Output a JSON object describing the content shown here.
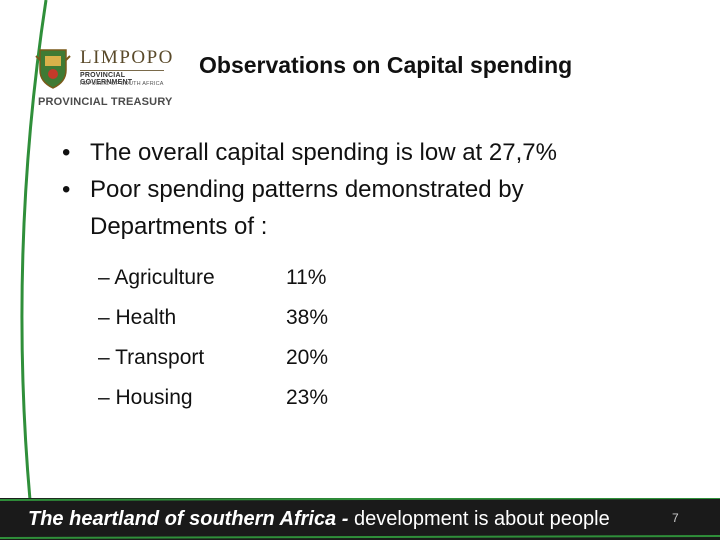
{
  "logo": {
    "name": "LIMPOPO",
    "sub1": "PROVINCIAL GOVERNMENT",
    "sub2": "REPUBLIC OF SOUTH AFRICA",
    "treasury": "PROVINCIAL TREASURY"
  },
  "title": "Observations on Capital spending",
  "bullets": [
    {
      "symbol": "•",
      "text": "The overall capital spending is low at 27,7%"
    },
    {
      "symbol": "•",
      "text_line1": "Poor spending patterns demonstrated by",
      "text_line2": "Departments of :"
    }
  ],
  "departments": [
    {
      "label": "– Agriculture",
      "value": "11%"
    },
    {
      "label": "– Health",
      "value": "38%"
    },
    {
      "label": "– Transport",
      "value": "20%"
    },
    {
      "label": "– Housing",
      "value": "23%"
    }
  ],
  "footer": {
    "bold_text": "The heartland of southern Africa -",
    "rest_text": " development is about people"
  },
  "slide_number": "7",
  "colors": {
    "accent_green": "#2f8f3a",
    "footer_bg": "#1a1a1a",
    "title": "#111111"
  }
}
